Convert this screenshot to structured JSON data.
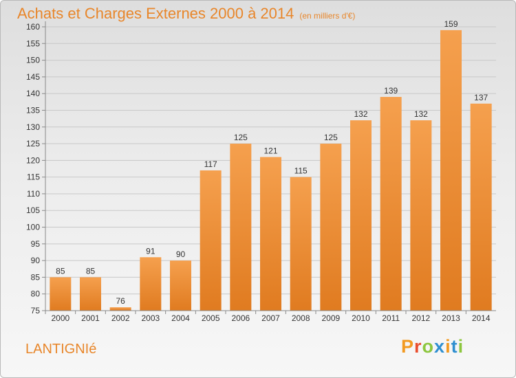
{
  "header": {
    "title": "Achats et Charges Externes 2000 à 2014",
    "subtitle": "(en milliers d'€)"
  },
  "footer": {
    "commune": "LANTIGNIé",
    "logo": "Proxiti"
  },
  "colors": {
    "title": "#e8862a",
    "bar_light": "#f5a04e",
    "bar_dark": "#e07b20",
    "logo_letters": [
      "#f29a21",
      "#e94e2e",
      "#8cc63e",
      "#2f8fd0",
      "#f29a21",
      "#2f8fd0",
      "#8cc63e"
    ]
  },
  "chart_data": {
    "type": "bar",
    "title": "Achats et Charges Externes 2000 à 2014",
    "subtitle": "(en milliers d'€)",
    "categories": [
      "2000",
      "2001",
      "2002",
      "2003",
      "2004",
      "2005",
      "2006",
      "2007",
      "2008",
      "2009",
      "2010",
      "2011",
      "2012",
      "2013",
      "2014"
    ],
    "values": [
      85,
      85,
      76,
      91,
      90,
      117,
      125,
      121,
      115,
      125,
      132,
      139,
      132,
      159,
      137
    ],
    "ylim": [
      75,
      160
    ],
    "yticks": [
      75,
      80,
      85,
      90,
      95,
      100,
      105,
      110,
      115,
      120,
      125,
      130,
      135,
      140,
      145,
      150,
      155,
      160
    ],
    "grid": true,
    "data_labels": true
  }
}
